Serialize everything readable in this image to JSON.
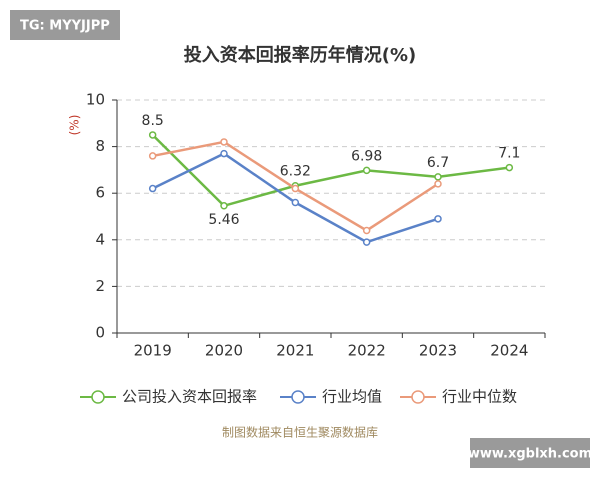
{
  "watermark_top": "TG: MYYJJPP",
  "watermark_bottom": "www.xgblxh.com",
  "chart_data": {
    "type": "line",
    "title": "投入资本回报率历年情况(%)",
    "y_label": "(%)",
    "categories": [
      "2019",
      "2020",
      "2021",
      "2022",
      "2023",
      "2024"
    ],
    "series": [
      {
        "name": "公司投入资本回报率",
        "color": "#6cb944",
        "values": [
          8.5,
          5.46,
          6.32,
          6.98,
          6.7,
          7.1
        ],
        "show_labels": true
      },
      {
        "name": "行业均值",
        "color": "#5a82c8",
        "values": [
          6.2,
          7.7,
          5.6,
          3.9,
          4.9,
          null
        ]
      },
      {
        "name": "行业中位数",
        "color": "#ea9a7a",
        "values": [
          7.6,
          8.2,
          6.2,
          4.4,
          6.4,
          null
        ]
      }
    ],
    "ylim": [
      0,
      10
    ],
    "yticks": [
      0,
      2,
      4,
      6,
      8,
      10
    ],
    "grid": true,
    "source": "制图数据来自恒生聚源数据库"
  }
}
